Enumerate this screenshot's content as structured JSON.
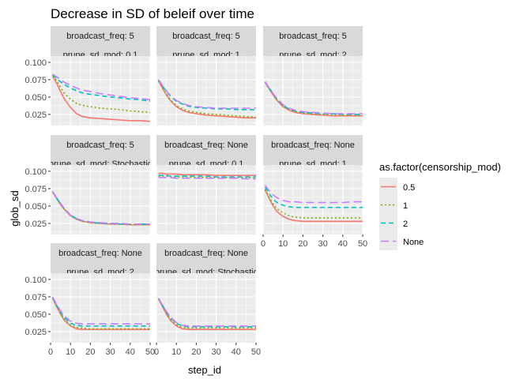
{
  "chart_data": {
    "type": "line",
    "title": "Decrease in SD of beleif over time",
    "xlabel": "step_id",
    "ylabel": "glob_sd",
    "xlim": [
      0,
      50
    ],
    "ylim": [
      0.009,
      0.109
    ],
    "xticks": [
      0,
      10,
      20,
      30,
      40,
      50
    ],
    "yticks": [
      0.025,
      0.05,
      0.075,
      0.1
    ],
    "ytick_labels": [
      "0.025",
      "0.050",
      "0.075",
      "0.100"
    ],
    "grid": true,
    "legend": {
      "title": "as.factor(censorship_mod)",
      "position": "right",
      "entries": [
        {
          "label": "0.5",
          "color": "#F8766D",
          "dash": "solid"
        },
        {
          "label": "1",
          "color": "#7CAE00",
          "dash": "dotted"
        },
        {
          "label": "2",
          "color": "#00BFC4",
          "dash": "dashed"
        },
        {
          "label": "None",
          "color": "#C77CFF",
          "dash": "longdash"
        }
      ]
    },
    "x": [
      1,
      3,
      5,
      7,
      10,
      13,
      16,
      20,
      25,
      30,
      35,
      40,
      45,
      50
    ],
    "panels": [
      {
        "strip1": "broadcast_freq: 5",
        "strip2": "prune_sd_mod: 0.1",
        "series": [
          {
            "name": "0.5",
            "values": [
              0.08,
              0.07,
              0.058,
              0.047,
              0.035,
              0.026,
              0.022,
              0.02,
              0.019,
              0.018,
              0.017,
              0.016,
              0.016,
              0.015
            ]
          },
          {
            "name": "1",
            "values": [
              0.08,
              0.074,
              0.064,
              0.055,
              0.047,
              0.041,
              0.038,
              0.036,
              0.034,
              0.033,
              0.032,
              0.03,
              0.029,
              0.028
            ]
          },
          {
            "name": "2",
            "values": [
              0.082,
              0.077,
              0.072,
              0.068,
              0.063,
              0.059,
              0.056,
              0.054,
              0.052,
              0.05,
              0.049,
              0.047,
              0.046,
              0.044
            ]
          },
          {
            "name": "None",
            "values": [
              0.083,
              0.079,
              0.075,
              0.071,
              0.067,
              0.063,
              0.06,
              0.058,
              0.055,
              0.053,
              0.051,
              0.049,
              0.048,
              0.046
            ]
          }
        ]
      },
      {
        "strip1": "broadcast_freq: 5",
        "strip2": "prune_sd_mod: 1",
        "series": [
          {
            "name": "0.5",
            "values": [
              0.074,
              0.063,
              0.053,
              0.045,
              0.036,
              0.031,
              0.028,
              0.026,
              0.024,
              0.023,
              0.022,
              0.021,
              0.02,
              0.02
            ]
          },
          {
            "name": "1",
            "values": [
              0.073,
              0.063,
              0.054,
              0.046,
              0.038,
              0.033,
              0.03,
              0.028,
              0.026,
              0.025,
              0.024,
              0.023,
              0.022,
              0.021
            ]
          },
          {
            "name": "2",
            "values": [
              0.075,
              0.066,
              0.058,
              0.051,
              0.044,
              0.04,
              0.037,
              0.035,
              0.034,
              0.033,
              0.033,
              0.032,
              0.032,
              0.032
            ]
          },
          {
            "name": "None",
            "values": [
              0.075,
              0.067,
              0.059,
              0.052,
              0.045,
              0.041,
              0.038,
              0.036,
              0.035,
              0.034,
              0.034,
              0.034,
              0.034,
              0.034
            ]
          }
        ]
      },
      {
        "strip1": "broadcast_freq: 5",
        "strip2": "prune_sd_mod: 2",
        "series": [
          {
            "name": "0.5",
            "values": [
              0.071,
              0.062,
              0.053,
              0.045,
              0.036,
              0.031,
              0.028,
              0.026,
              0.025,
              0.024,
              0.023,
              0.023,
              0.023,
              0.023
            ]
          },
          {
            "name": "1",
            "values": [
              0.071,
              0.062,
              0.054,
              0.046,
              0.037,
              0.032,
              0.029,
              0.027,
              0.026,
              0.025,
              0.025,
              0.024,
              0.024,
              0.024
            ]
          },
          {
            "name": "2",
            "values": [
              0.072,
              0.063,
              0.055,
              0.047,
              0.038,
              0.033,
              0.03,
              0.028,
              0.027,
              0.026,
              0.026,
              0.025,
              0.025,
              0.025
            ]
          },
          {
            "name": "None",
            "values": [
              0.072,
              0.063,
              0.055,
              0.048,
              0.039,
              0.034,
              0.031,
              0.029,
              0.028,
              0.027,
              0.026,
              0.026,
              0.026,
              0.026
            ]
          }
        ]
      },
      {
        "strip1": "broadcast_freq: 5",
        "strip2": "prune_sd_mod: Stochastic",
        "series": [
          {
            "name": "0.5",
            "values": [
              0.07,
              0.061,
              0.052,
              0.045,
              0.036,
              0.031,
              0.028,
              0.026,
              0.025,
              0.024,
              0.024,
              0.023,
              0.023,
              0.023
            ]
          },
          {
            "name": "1",
            "values": [
              0.07,
              0.061,
              0.052,
              0.045,
              0.036,
              0.031,
              0.028,
              0.026,
              0.025,
              0.024,
              0.024,
              0.023,
              0.023,
              0.023
            ]
          },
          {
            "name": "2",
            "values": [
              0.071,
              0.062,
              0.053,
              0.046,
              0.037,
              0.032,
              0.029,
              0.027,
              0.025,
              0.025,
              0.024,
              0.024,
              0.024,
              0.024
            ]
          },
          {
            "name": "None",
            "values": [
              0.071,
              0.062,
              0.054,
              0.046,
              0.037,
              0.032,
              0.029,
              0.027,
              0.026,
              0.025,
              0.025,
              0.024,
              0.024,
              0.024
            ]
          }
        ]
      },
      {
        "strip1": "broadcast_freq: None",
        "strip2": "prune_sd_mod: 0.1",
        "series": [
          {
            "name": "0.5",
            "values": [
              0.097,
              0.097,
              0.096,
              0.096,
              0.096,
              0.095,
              0.095,
              0.095,
              0.095,
              0.094,
              0.094,
              0.094,
              0.094,
              0.094
            ]
          },
          {
            "name": "1",
            "values": [
              0.093,
              0.093,
              0.093,
              0.092,
              0.092,
              0.092,
              0.092,
              0.091,
              0.091,
              0.091,
              0.091,
              0.091,
              0.091,
              0.09
            ]
          },
          {
            "name": "2",
            "values": [
              0.094,
              0.094,
              0.094,
              0.093,
              0.093,
              0.093,
              0.093,
              0.093,
              0.093,
              0.092,
              0.092,
              0.092,
              0.092,
              0.092
            ]
          },
          {
            "name": "None",
            "values": [
              0.091,
              0.091,
              0.091,
              0.091,
              0.09,
              0.09,
              0.09,
              0.09,
              0.09,
              0.09,
              0.09,
              0.09,
              0.089,
              0.089
            ]
          }
        ]
      },
      {
        "strip1": "broadcast_freq: None",
        "strip2": "prune_sd_mod: 1",
        "series": [
          {
            "name": "0.5",
            "values": [
              0.073,
              0.061,
              0.05,
              0.042,
              0.035,
              0.031,
              0.029,
              0.028,
              0.028,
              0.028,
              0.028,
              0.028,
              0.028,
              0.028
            ]
          },
          {
            "name": "1",
            "values": [
              0.074,
              0.063,
              0.053,
              0.046,
              0.04,
              0.036,
              0.034,
              0.033,
              0.033,
              0.033,
              0.033,
              0.033,
              0.033,
              0.033
            ]
          },
          {
            "name": "2",
            "values": [
              0.077,
              0.068,
              0.06,
              0.055,
              0.051,
              0.049,
              0.048,
              0.048,
              0.048,
              0.048,
              0.048,
              0.048,
              0.048,
              0.048
            ]
          },
          {
            "name": "None",
            "values": [
              0.08,
              0.072,
              0.066,
              0.062,
              0.058,
              0.056,
              0.056,
              0.055,
              0.055,
              0.055,
              0.055,
              0.055,
              0.056,
              0.056
            ]
          }
        ]
      },
      {
        "strip1": "broadcast_freq: None",
        "strip2": "prune_sd_mod: 2",
        "series": [
          {
            "name": "0.5",
            "values": [
              0.073,
              0.061,
              0.05,
              0.041,
              0.033,
              0.029,
              0.028,
              0.028,
              0.028,
              0.028,
              0.028,
              0.028,
              0.028,
              0.028
            ]
          },
          {
            "name": "1",
            "values": [
              0.073,
              0.062,
              0.051,
              0.042,
              0.034,
              0.031,
              0.03,
              0.029,
              0.029,
              0.029,
              0.029,
              0.029,
              0.029,
              0.029
            ]
          },
          {
            "name": "2",
            "values": [
              0.074,
              0.063,
              0.053,
              0.045,
              0.037,
              0.034,
              0.033,
              0.033,
              0.033,
              0.033,
              0.033,
              0.033,
              0.033,
              0.033
            ]
          },
          {
            "name": "None",
            "values": [
              0.075,
              0.064,
              0.055,
              0.047,
              0.04,
              0.037,
              0.036,
              0.036,
              0.036,
              0.036,
              0.036,
              0.036,
              0.036,
              0.036
            ]
          }
        ]
      },
      {
        "strip1": "broadcast_freq: None",
        "strip2": "prune_sd_mod: Stochastic",
        "series": [
          {
            "name": "0.5",
            "values": [
              0.072,
              0.061,
              0.05,
              0.041,
              0.033,
              0.029,
              0.028,
              0.028,
              0.028,
              0.028,
              0.028,
              0.028,
              0.028,
              0.028
            ]
          },
          {
            "name": "1",
            "values": [
              0.072,
              0.062,
              0.052,
              0.043,
              0.035,
              0.031,
              0.03,
              0.03,
              0.03,
              0.03,
              0.03,
              0.03,
              0.03,
              0.03
            ]
          },
          {
            "name": "2",
            "values": [
              0.073,
              0.063,
              0.053,
              0.045,
              0.037,
              0.033,
              0.032,
              0.032,
              0.032,
              0.032,
              0.032,
              0.032,
              0.032,
              0.032
            ]
          },
          {
            "name": "None",
            "values": [
              0.073,
              0.063,
              0.054,
              0.046,
              0.038,
              0.034,
              0.033,
              0.033,
              0.033,
              0.033,
              0.033,
              0.033,
              0.033,
              0.033
            ]
          }
        ]
      }
    ]
  }
}
